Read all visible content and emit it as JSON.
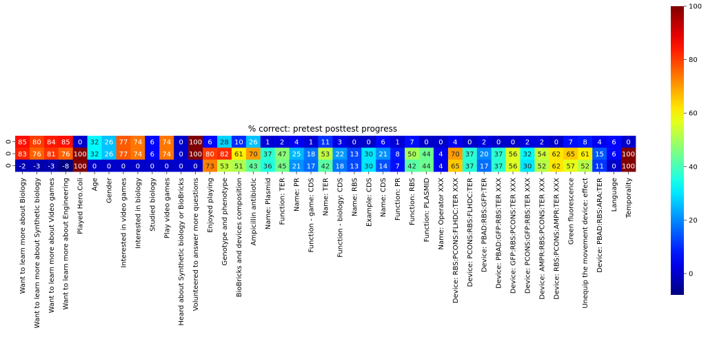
{
  "chart_data": {
    "type": "heatmap",
    "title": "% correct: pretest posttest progress",
    "colormap": "jet",
    "vmin": -8,
    "vmax": 100,
    "colorbar_ticks": [
      0,
      20,
      40,
      60,
      80,
      100
    ],
    "row_labels": [
      "0",
      "0",
      "0"
    ],
    "columns": [
      "Want to learn more about Biology",
      "Want to learn more about Synthetic biology",
      "Want to learn more about Video games",
      "Want to learn more about Engineering",
      "Played Hero.Coli",
      "Age",
      "Gender",
      "Interested in video games",
      "Interested in biology",
      "Studied biology",
      "Play video games",
      "Heard about Synthetic biology or BioBricks",
      "Volunteered to answer more questions",
      "Enjoyed playing",
      "Genotype and phenotype",
      "BioBricks and devices composition",
      "Ampicillin antibiotic",
      "Name: Plasmid",
      "Function: TER",
      "Name: PR",
      "Function - game: CDS",
      "Name: TER",
      "Function - biology: CDS",
      "Name: RBS",
      "Example: CDS",
      "Name: CDS",
      "Function: PR",
      "Function: RBS",
      "Function: PLASMID",
      "Name: Operator XXX",
      "Device: RBS:PCONS:FLHDC:TER XXX",
      "Device: PCONS:RBS:FLHDC:TER",
      "Device: PBAD:RBS:GFP:TER",
      "Device: PBAD:GFP:RBS:TER XXX",
      "Device: GFP:RBS:PCONS:TER XXX",
      "Device: PCONS:GFP:RBS:TER XXX",
      "Device: AMPR:RBS:PCONS:TER XXX",
      "Device: RBS:PCONS:AMPR:TER XXX",
      "Green fluorescence",
      "Unequip the movement device: effect",
      "Device: PBAD:RBS:ARA:TER",
      "Language",
      "Temporality"
    ],
    "values": [
      [
        85,
        80,
        84,
        85,
        0,
        32,
        26,
        77,
        74,
        6,
        74,
        0,
        100,
        6,
        28,
        10,
        26,
        1,
        2,
        4,
        1,
        11,
        3,
        0,
        0,
        6,
        1,
        7,
        0,
        0,
        4,
        0,
        2,
        0,
        0,
        2,
        2,
        0,
        7,
        8,
        4,
        6,
        0
      ],
      [
        83,
        76,
        81,
        76,
        100,
        32,
        26,
        77,
        74,
        6,
        74,
        0,
        100,
        80,
        82,
        61,
        70,
        37,
        47,
        25,
        18,
        53,
        22,
        13,
        30,
        21,
        8,
        50,
        44,
        4,
        70,
        37,
        20,
        37,
        56,
        32,
        54,
        62,
        65,
        61,
        15,
        6,
        100
      ],
      [
        -2,
        -3,
        -3,
        -8,
        100,
        0,
        0,
        0,
        0,
        0,
        0,
        0,
        0,
        73,
        53,
        51,
        43,
        36,
        45,
        21,
        17,
        42,
        18,
        13,
        30,
        14,
        7,
        42,
        44,
        4,
        65,
        37,
        17,
        37,
        56,
        30,
        52,
        62,
        57,
        52,
        11,
        0,
        100
      ]
    ]
  }
}
